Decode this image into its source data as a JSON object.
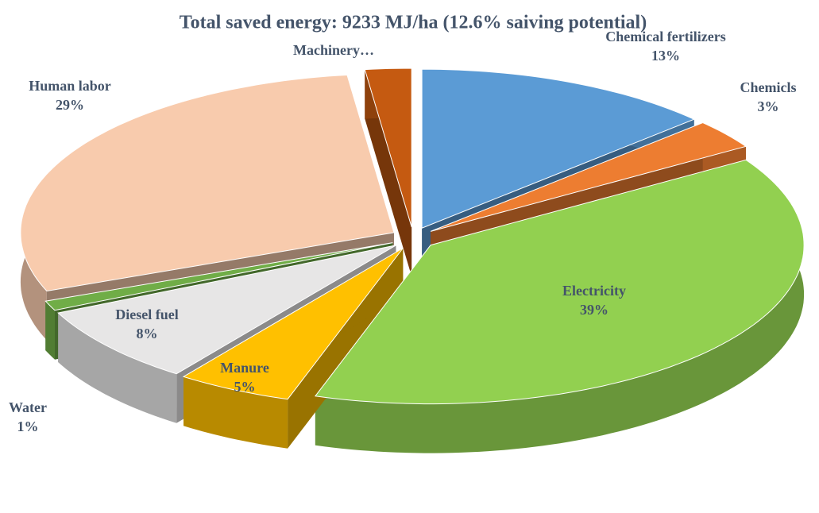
{
  "chart_data": {
    "type": "pie3d",
    "title": "Total saved energy: 9233 MJ/ha (12.6%  saiving potential)",
    "categories": [
      "Chemical fertilizers",
      "Chemicls",
      "Electricity",
      "Manure",
      "Diesel fuel",
      "Water",
      "Human labor",
      "Machinery…"
    ],
    "values": [
      13,
      3,
      39,
      5,
      8,
      1,
      29,
      2
    ],
    "value_labels": [
      "13%",
      "3%",
      "39%",
      "5%",
      "8%",
      "1%",
      "29%",
      null
    ],
    "colors": [
      "#5b9bd5",
      "#ed7d31",
      "#92d050",
      "#ffc000",
      "#e7e6e6",
      "#70ad47",
      "#f8cbad",
      "#c55a11"
    ]
  }
}
